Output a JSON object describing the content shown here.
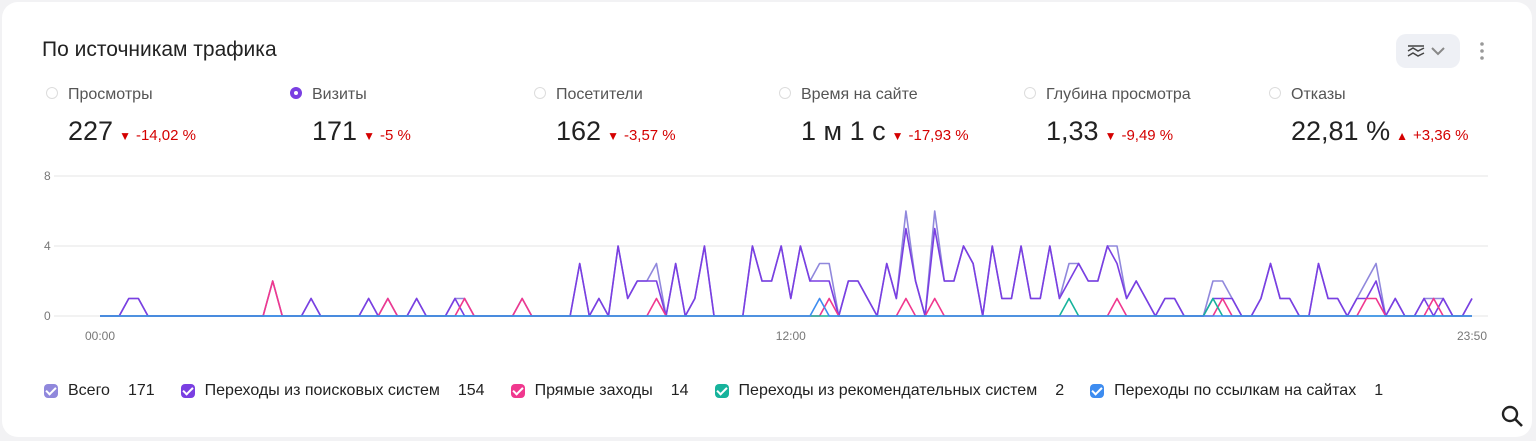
{
  "header": {
    "title": "По источникам трафика"
  },
  "metrics": [
    {
      "name": "Просмотры",
      "value": "227",
      "change": "-14,02 %",
      "direction": "down",
      "selected": false
    },
    {
      "name": "Визиты",
      "value": "171",
      "change": "-5 %",
      "direction": "down",
      "selected": true
    },
    {
      "name": "Посетители",
      "value": "162",
      "change": "-3,57 %",
      "direction": "down",
      "selected": false
    },
    {
      "name": "Время на сайте",
      "value": "1 м 1 с",
      "change": "-17,93 %",
      "direction": "down",
      "selected": false
    },
    {
      "name": "Глубина просмотра",
      "value": "1,33",
      "change": "-9,49 %",
      "direction": "down",
      "selected": false
    },
    {
      "name": "Отказы",
      "value": "22,81 %",
      "change": "+3,36 %",
      "direction": "up",
      "selected": false
    }
  ],
  "chart_data": {
    "type": "line",
    "categories": [
      "00:00",
      null,
      null,
      null,
      null,
      null,
      null,
      null,
      null,
      null,
      null,
      null,
      null,
      null,
      null,
      null,
      null,
      null,
      null,
      null,
      null,
      null,
      null,
      null,
      null,
      null,
      null,
      null,
      null,
      null,
      null,
      null,
      null,
      null,
      null,
      null,
      null,
      null,
      null,
      null,
      null,
      null,
      null,
      null,
      null,
      null,
      null,
      null,
      null,
      null,
      null,
      null,
      null,
      null,
      null,
      null,
      null,
      null,
      null,
      null,
      null,
      null,
      null,
      null,
      null,
      null,
      null,
      null,
      null,
      null,
      null,
      null,
      "12:00",
      null,
      null,
      null,
      null,
      null,
      null,
      null,
      null,
      null,
      null,
      null,
      null,
      null,
      null,
      null,
      null,
      null,
      null,
      null,
      null,
      null,
      null,
      null,
      null,
      null,
      null,
      null,
      null,
      null,
      null,
      null,
      null,
      null,
      null,
      null,
      null,
      null,
      null,
      null,
      null,
      null,
      null,
      null,
      null,
      null,
      null,
      null,
      null,
      null,
      null,
      null,
      null,
      null,
      null,
      null,
      null,
      null,
      null,
      null,
      null,
      null,
      null,
      null,
      null,
      null,
      null,
      null,
      null,
      null,
      null,
      "23:50"
    ],
    "ylim": [
      0,
      8
    ],
    "yticks": [
      0,
      4,
      8
    ],
    "grid": true,
    "series": [
      {
        "name": "Всего",
        "total": 171,
        "color": "#9088dc",
        "values": [
          0,
          0,
          0,
          1,
          1,
          0,
          0,
          0,
          0,
          0,
          0,
          0,
          0,
          0,
          0,
          0,
          0,
          0,
          2,
          0,
          0,
          0,
          1,
          0,
          0,
          0,
          0,
          0,
          1,
          0,
          1,
          0,
          0,
          1,
          0,
          0,
          0,
          1,
          1,
          0,
          0,
          0,
          0,
          0,
          1,
          0,
          0,
          0,
          0,
          0,
          3,
          0,
          1,
          0,
          4,
          1,
          2,
          2,
          3,
          0,
          3,
          0,
          1,
          4,
          0,
          0,
          0,
          0,
          4,
          2,
          2,
          4,
          1,
          4,
          2,
          3,
          3,
          0,
          2,
          2,
          1,
          0,
          3,
          1,
          6,
          2,
          0,
          6,
          2,
          2,
          4,
          3,
          0,
          4,
          1,
          1,
          4,
          1,
          1,
          4,
          1,
          3,
          3,
          2,
          2,
          4,
          4,
          1,
          2,
          1,
          0,
          1,
          1,
          0,
          0,
          0,
          2,
          2,
          1,
          0,
          0,
          1,
          3,
          1,
          1,
          0,
          0,
          3,
          1,
          1,
          0,
          1,
          2,
          3,
          0,
          1,
          0,
          0,
          1,
          1,
          1,
          0,
          0,
          1
        ]
      },
      {
        "name": "Переходы из поисковых систем",
        "total": 154,
        "color": "#7a3fe2",
        "values": [
          0,
          0,
          0,
          1,
          1,
          0,
          0,
          0,
          0,
          0,
          0,
          0,
          0,
          0,
          0,
          0,
          0,
          0,
          0,
          0,
          0,
          0,
          1,
          0,
          0,
          0,
          0,
          0,
          1,
          0,
          0,
          0,
          0,
          1,
          0,
          0,
          0,
          1,
          0,
          0,
          0,
          0,
          0,
          0,
          0,
          0,
          0,
          0,
          0,
          0,
          3,
          0,
          1,
          0,
          4,
          1,
          2,
          2,
          2,
          0,
          3,
          0,
          1,
          4,
          0,
          0,
          0,
          0,
          4,
          2,
          2,
          4,
          1,
          4,
          2,
          2,
          2,
          0,
          2,
          2,
          1,
          0,
          3,
          1,
          5,
          2,
          0,
          5,
          2,
          2,
          4,
          3,
          0,
          4,
          1,
          1,
          4,
          1,
          1,
          4,
          1,
          2,
          3,
          2,
          2,
          4,
          3,
          1,
          2,
          1,
          0,
          1,
          1,
          0,
          0,
          0,
          1,
          1,
          1,
          0,
          0,
          1,
          3,
          1,
          1,
          0,
          0,
          3,
          1,
          1,
          0,
          1,
          1,
          2,
          0,
          1,
          0,
          0,
          1,
          0,
          1,
          0,
          0,
          1
        ]
      },
      {
        "name": "Прямые заходы",
        "total": 14,
        "color": "#f0388e",
        "values": [
          0,
          0,
          0,
          0,
          0,
          0,
          0,
          0,
          0,
          0,
          0,
          0,
          0,
          0,
          0,
          0,
          0,
          0,
          2,
          0,
          0,
          0,
          0,
          0,
          0,
          0,
          0,
          0,
          0,
          0,
          1,
          0,
          0,
          0,
          0,
          0,
          0,
          0,
          1,
          0,
          0,
          0,
          0,
          0,
          1,
          0,
          0,
          0,
          0,
          0,
          0,
          0,
          0,
          0,
          0,
          0,
          0,
          0,
          1,
          0,
          0,
          0,
          0,
          0,
          0,
          0,
          0,
          0,
          0,
          0,
          0,
          0,
          0,
          0,
          0,
          0,
          1,
          0,
          0,
          0,
          0,
          0,
          0,
          0,
          1,
          0,
          0,
          1,
          0,
          0,
          0,
          0,
          0,
          0,
          0,
          0,
          0,
          0,
          0,
          0,
          0,
          0,
          0,
          0,
          0,
          0,
          1,
          0,
          0,
          0,
          0,
          0,
          0,
          0,
          0,
          0,
          0,
          1,
          0,
          0,
          0,
          0,
          0,
          0,
          0,
          0,
          0,
          0,
          0,
          0,
          0,
          0,
          1,
          1,
          0,
          0,
          0,
          0,
          0,
          1,
          0,
          0,
          0,
          0
        ]
      },
      {
        "name": "Переходы из рекомендательных систем",
        "total": 2,
        "color": "#17b39c",
        "values": [
          0,
          0,
          0,
          0,
          0,
          0,
          0,
          0,
          0,
          0,
          0,
          0,
          0,
          0,
          0,
          0,
          0,
          0,
          0,
          0,
          0,
          0,
          0,
          0,
          0,
          0,
          0,
          0,
          0,
          0,
          0,
          0,
          0,
          0,
          0,
          0,
          0,
          0,
          0,
          0,
          0,
          0,
          0,
          0,
          0,
          0,
          0,
          0,
          0,
          0,
          0,
          0,
          0,
          0,
          0,
          0,
          0,
          0,
          0,
          0,
          0,
          0,
          0,
          0,
          0,
          0,
          0,
          0,
          0,
          0,
          0,
          0,
          0,
          0,
          0,
          0,
          0,
          0,
          0,
          0,
          0,
          0,
          0,
          0,
          0,
          0,
          0,
          0,
          0,
          0,
          0,
          0,
          0,
          0,
          0,
          0,
          0,
          0,
          0,
          0,
          0,
          1,
          0,
          0,
          0,
          0,
          0,
          0,
          0,
          0,
          0,
          0,
          0,
          0,
          0,
          0,
          1,
          0,
          0,
          0,
          0,
          0,
          0,
          0,
          0,
          0,
          0,
          0,
          0,
          0,
          0,
          0,
          0,
          0,
          0,
          0,
          0,
          0,
          0,
          0,
          0,
          0,
          0,
          0
        ]
      },
      {
        "name": "Переходы по ссылкам на сайтах",
        "total": 1,
        "color": "#3d8cf0",
        "values": [
          0,
          0,
          0,
          0,
          0,
          0,
          0,
          0,
          0,
          0,
          0,
          0,
          0,
          0,
          0,
          0,
          0,
          0,
          0,
          0,
          0,
          0,
          0,
          0,
          0,
          0,
          0,
          0,
          0,
          0,
          0,
          0,
          0,
          0,
          0,
          0,
          0,
          0,
          0,
          0,
          0,
          0,
          0,
          0,
          0,
          0,
          0,
          0,
          0,
          0,
          0,
          0,
          0,
          0,
          0,
          0,
          0,
          0,
          0,
          0,
          0,
          0,
          0,
          0,
          0,
          0,
          0,
          0,
          0,
          0,
          0,
          0,
          0,
          0,
          0,
          1,
          0,
          0,
          0,
          0,
          0,
          0,
          0,
          0,
          0,
          0,
          0,
          0,
          0,
          0,
          0,
          0,
          0,
          0,
          0,
          0,
          0,
          0,
          0,
          0,
          0,
          0,
          0,
          0,
          0,
          0,
          0,
          0,
          0,
          0,
          0,
          0,
          0,
          0,
          0,
          0,
          0,
          0,
          0,
          0,
          0,
          0,
          0,
          0,
          0,
          0,
          0,
          0,
          0,
          0,
          0,
          0,
          0,
          0,
          0,
          0,
          0,
          0,
          0,
          0,
          0,
          0,
          0,
          0
        ]
      }
    ]
  }
}
